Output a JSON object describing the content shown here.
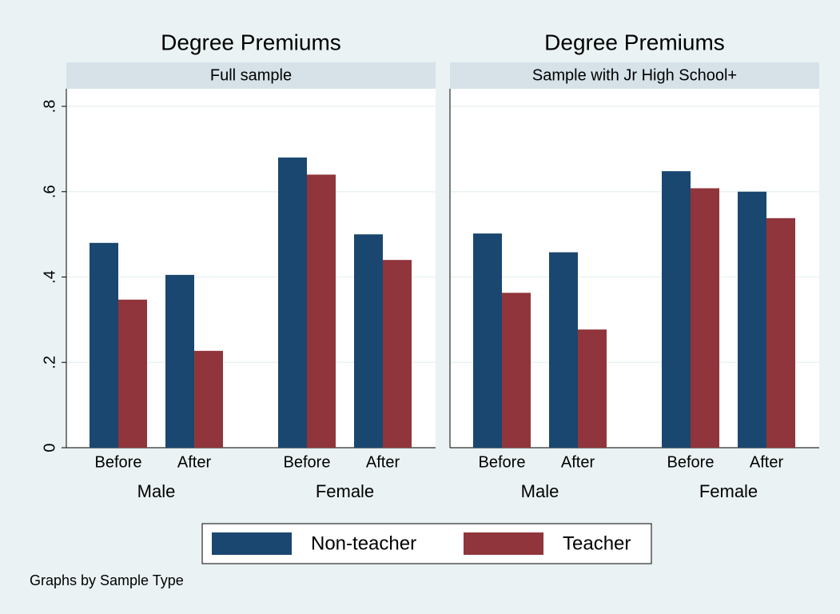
{
  "chart_data": {
    "type": "bar",
    "categories": [
      "Before",
      "After",
      "Before",
      "After"
    ],
    "groups": [
      "Male",
      "Female"
    ],
    "series": [
      {
        "name": "Non-teacher",
        "color": "#1a476f"
      },
      {
        "name": "Teacher",
        "color": "#90353b"
      }
    ],
    "panels": [
      {
        "title": "Degree Premiums",
        "subtitle": "Full sample",
        "series": [
          {
            "values": [
              0.48,
              0.405,
              0.68,
              0.5
            ]
          },
          {
            "values": [
              0.347,
              0.227,
              0.64,
              0.44
            ]
          }
        ]
      },
      {
        "title": "Degree Premiums",
        "subtitle": "Sample with Jr High School+",
        "series": [
          {
            "values": [
              0.502,
              0.458,
              0.648,
              0.6
            ]
          },
          {
            "values": [
              0.363,
              0.277,
              0.608,
              0.538
            ]
          }
        ]
      }
    ],
    "ylim": [
      0,
      0.8
    ],
    "yticks": [
      0,
      {
        "value": 0.2,
        "label": ".2"
      },
      {
        "value": 0.4,
        "label": ".4"
      },
      {
        "value": 0.6,
        "label": ".6"
      },
      {
        "value": 0.8,
        "label": ".8"
      }
    ],
    "grid": true,
    "note": "Graphs by Sample Type"
  }
}
